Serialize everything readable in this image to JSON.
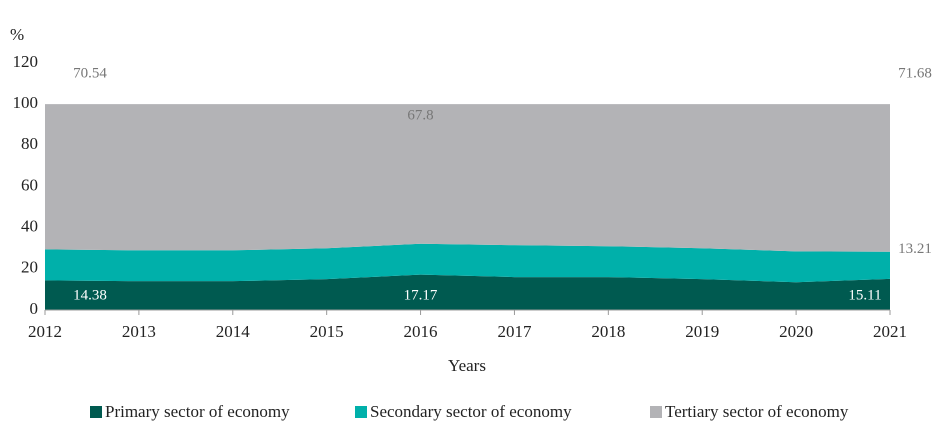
{
  "chart_data": {
    "type": "stacked_area",
    "y_axis_label": "%",
    "x_axis_label": "Years",
    "categories": [
      "2012",
      "2013",
      "2014",
      "2015",
      "2016",
      "2017",
      "2018",
      "2019",
      "2020",
      "2021"
    ],
    "series": [
      {
        "name": "Primary sector of economy",
        "color": "#005a50",
        "values": [
          14.38,
          14,
          14,
          15,
          17.17,
          16,
          16,
          15,
          13.5,
          15.11
        ],
        "value_labels": [
          "14.38",
          null,
          null,
          null,
          "17.17",
          null,
          null,
          null,
          null,
          "15.11"
        ]
      },
      {
        "name": "Secondary sector of economy",
        "color": "#00b0aa",
        "values": [
          15.08,
          15,
          15,
          15,
          15.03,
          15.5,
          15,
          15,
          15,
          13.21
        ],
        "value_labels": [
          "15.08",
          null,
          null,
          null,
          null,
          null,
          null,
          null,
          null,
          "13.21"
        ]
      },
      {
        "name": "Tertiary sector of economy",
        "color": "#b3b3b6",
        "values": [
          70.54,
          71,
          71,
          70,
          67.8,
          68.5,
          69,
          70,
          71.5,
          71.68
        ],
        "value_labels": [
          "70.54",
          null,
          null,
          null,
          "67.8",
          null,
          null,
          null,
          null,
          "71.68"
        ]
      }
    ],
    "ylim": [
      0,
      120
    ],
    "yticks": [
      0,
      20,
      40,
      60,
      80,
      100,
      120
    ],
    "legend": "bottom"
  }
}
